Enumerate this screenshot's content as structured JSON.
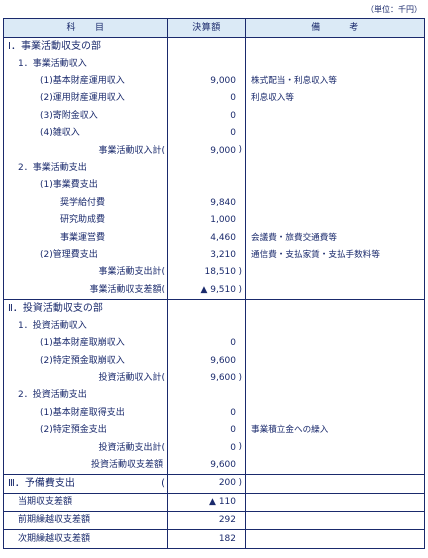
{
  "unit_label": "（単位：千円）",
  "header": {
    "col1": "科　　目",
    "col2": "決算額",
    "col3": "備　　　考"
  },
  "rows": [
    {
      "id": "s1",
      "label": "Ⅰ．事業活動収支の部",
      "level": 0
    },
    {
      "id": "s1-1",
      "label": "1．事業活動収入",
      "level": 1
    },
    {
      "id": "s1-1-1",
      "label": "(1)基本財産運用収入",
      "level": 2,
      "amount": "9,000",
      "note": "株式配当・利息収入等"
    },
    {
      "id": "s1-1-2",
      "label": "(2)運用財産運用収入",
      "level": 2,
      "amount": "0",
      "note": "利息収入等"
    },
    {
      "id": "s1-1-3",
      "label": "(3)寄附金収入",
      "level": 2,
      "amount": "0"
    },
    {
      "id": "s1-1-4",
      "label": "(4)雑収入",
      "level": 2,
      "amount": "0"
    },
    {
      "id": "s1-1-t",
      "label": "事業活動収入計",
      "level": "sub",
      "amount": "9,000",
      "paren": true
    },
    {
      "id": "s1-2",
      "label": "2．事業活動支出",
      "level": 1
    },
    {
      "id": "s1-2-1",
      "label": "(1)事業費支出",
      "level": 2
    },
    {
      "id": "s1-2-1a",
      "label": "奨学給付費",
      "level": 3,
      "amount": "9,840"
    },
    {
      "id": "s1-2-1b",
      "label": "研究助成費",
      "level": 3,
      "amount": "1,000"
    },
    {
      "id": "s1-2-1c",
      "label": "事業運営費",
      "level": 3,
      "amount": "4,460",
      "note": "会議費・旅費交通費等"
    },
    {
      "id": "s1-2-2",
      "label": "(2)管理費支出",
      "level": 2,
      "amount": "3,210",
      "note": "通信費・支払家賃・支払手数料等"
    },
    {
      "id": "s1-2-t",
      "label": "事業活動支出計",
      "level": "sub",
      "amount": "18,510",
      "paren": true
    },
    {
      "id": "s1-d",
      "label": "事業活動収支差額",
      "level": "sub",
      "amount": "▲ 9,510",
      "paren": true
    },
    {
      "id": "s2",
      "label": "Ⅱ．投資活動収支の部",
      "level": 0,
      "sep": true
    },
    {
      "id": "s2-1",
      "label": "1．投資活動収入",
      "level": 1
    },
    {
      "id": "s2-1-1",
      "label": "(1)基本財産取崩収入",
      "level": 2,
      "amount": "0"
    },
    {
      "id": "s2-1-2",
      "label": "(2)特定預金取崩収入",
      "level": 2,
      "amount": "9,600"
    },
    {
      "id": "s2-1-t",
      "label": "投資活動収入計",
      "level": "sub",
      "amount": "9,600",
      "paren": true
    },
    {
      "id": "s2-2",
      "label": "2．投資活動支出",
      "level": 1
    },
    {
      "id": "s2-2-1",
      "label": "(1)基本財産取得支出",
      "level": 2,
      "amount": "0"
    },
    {
      "id": "s2-2-2",
      "label": "(2)特定預金支出",
      "level": 2,
      "amount": "0",
      "note": "事業積立金への繰入"
    },
    {
      "id": "s2-2-t",
      "label": "投資活動支出計",
      "level": "sub",
      "amount": "0",
      "paren": true
    },
    {
      "id": "s2-d",
      "label": "投資活動収支差額",
      "level": "sub",
      "amount": "9,600"
    },
    {
      "id": "s3",
      "label": "Ⅲ．予備費支出",
      "level": 0,
      "amount": "200",
      "paren": true,
      "sep": true
    },
    {
      "id": "t1",
      "label": "当期収支差額",
      "level": 1,
      "amount": "▲ 110",
      "sep": true
    },
    {
      "id": "t2",
      "label": "前期繰越収支差額",
      "level": 1,
      "amount": "292",
      "sep": true
    },
    {
      "id": "t3",
      "label": "次期繰越収支差額",
      "level": 1,
      "amount": "182",
      "sep": true
    }
  ]
}
